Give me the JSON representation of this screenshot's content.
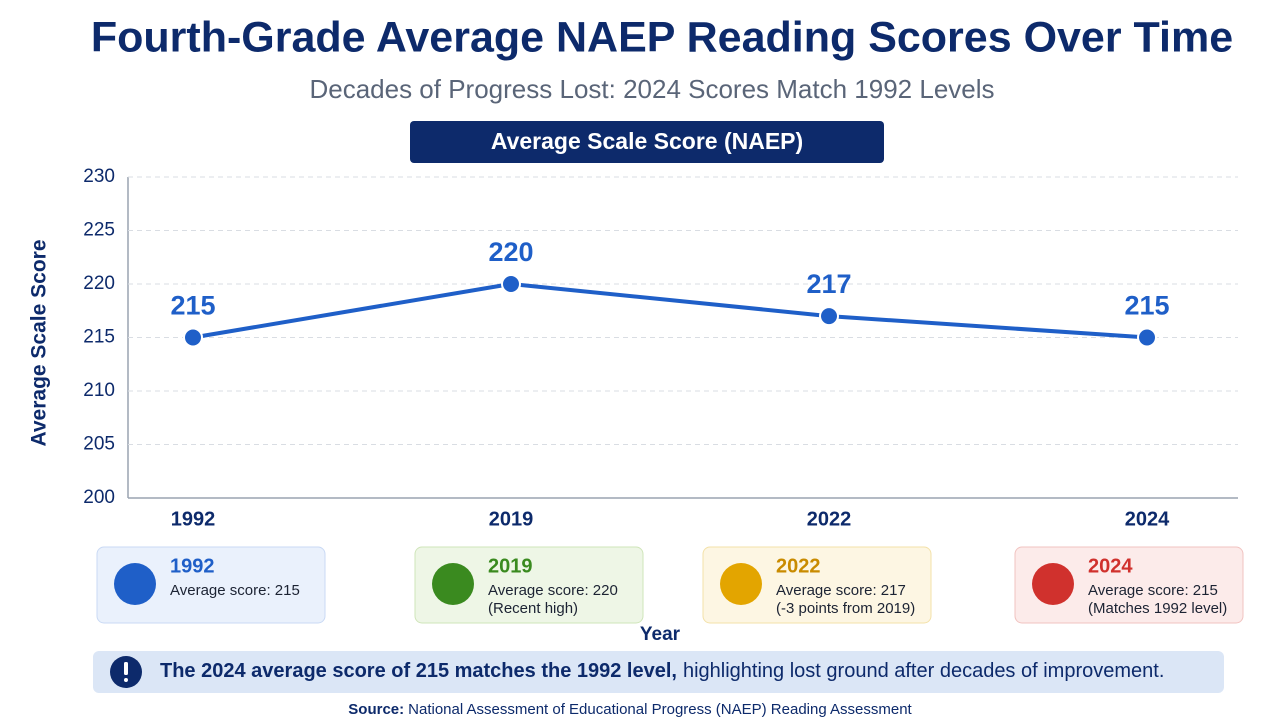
{
  "chart_data": {
    "type": "line",
    "title": "Fourth-Grade Average NAEP Reading Scores Over Time",
    "subtitle": "Decades of Progress Lost: 2024 Scores Match 1992 Levels",
    "badge": "Average Scale Score (NAEP)",
    "ylabel": "Average Scale Score",
    "xlabel": "Year",
    "categories": [
      "1992",
      "2019",
      "2022",
      "2024"
    ],
    "values": [
      215,
      220,
      217,
      215
    ],
    "color": "#1f5fc8",
    "ylim": [
      200,
      230
    ],
    "yticks": [
      200,
      205,
      210,
      215,
      220,
      225,
      230
    ],
    "grid": true
  },
  "cards": [
    {
      "year": "1992",
      "lines": [
        "Average score: 215"
      ]
    },
    {
      "year": "2019",
      "lines": [
        "Average score: 220",
        "(Recent high)"
      ]
    },
    {
      "year": "2022",
      "lines": [
        "Average score: 217",
        "(-3 points from 2019)"
      ]
    },
    {
      "year": "2024",
      "lines": [
        "Average score: 215",
        "(Matches 1992 level)"
      ]
    }
  ],
  "callout": {
    "bold": "The 2024 average score of 215 matches the 1992 level,",
    "text": "highlighting lost ground after decades of improvement."
  },
  "source": {
    "label": "Source:",
    "text": "National Assessment of Educational Progress (NAEP) Reading Assessment"
  }
}
